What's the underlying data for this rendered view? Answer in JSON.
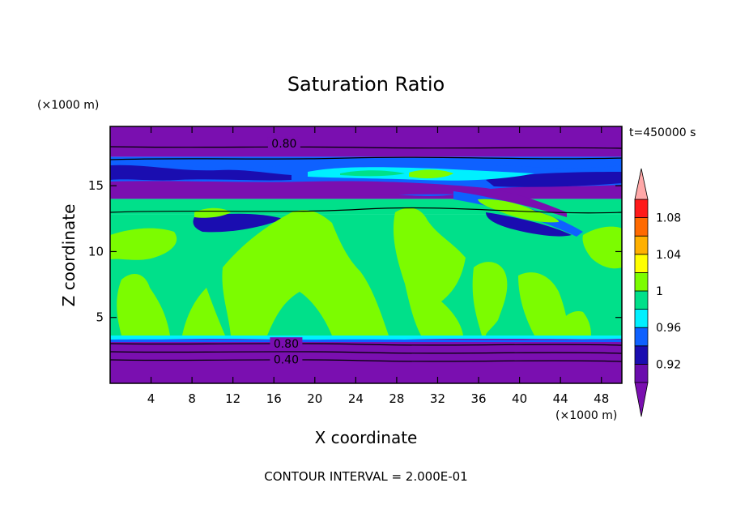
{
  "chart_data": {
    "type": "heatmap",
    "title": "Saturation Ratio",
    "xlabel": "X coordinate",
    "ylabel": "Z coordinate",
    "x_unit": "(×1000 m)",
    "y_unit": "(×1000 m)",
    "time_label": "t=450000 s",
    "footer": "CONTOUR INTERVAL = 2.000E-01",
    "xlim": [
      0,
      50
    ],
    "ylim": [
      0,
      19.5
    ],
    "x_ticks": [
      4,
      8,
      12,
      16,
      20,
      24,
      28,
      32,
      36,
      40,
      44,
      48
    ],
    "y_ticks": [
      5,
      10,
      15
    ],
    "contour_labels": [
      {
        "text": "0.80",
        "x": 17.0,
        "z": 18.2
      },
      {
        "text": "0.80",
        "x": 17.2,
        "z": 3.0
      },
      {
        "text": "0.40",
        "x": 17.2,
        "z": 1.8
      }
    ],
    "colorbar": {
      "levels": [
        0.9,
        0.92,
        0.94,
        0.96,
        0.98,
        1.0,
        1.02,
        1.04,
        1.06,
        1.08,
        1.1
      ],
      "colors": [
        "#6a0dad",
        "#1a0db0",
        "#0e61ff",
        "#00f0ff",
        "#00e08a",
        "#7cfc00",
        "#ffff00",
        "#ffb000",
        "#ff6a00",
        "#ff1a1a"
      ],
      "under_color": "#7a0fb0",
      "over_color": "#ffa8a8",
      "tick_labels": [
        "1.08",
        "1.04",
        "1",
        "0.96",
        "0.92"
      ],
      "tick_values": [
        1.08,
        1.04,
        1.0,
        0.96,
        0.92
      ]
    },
    "bands": [
      {
        "z0": 0.0,
        "z1": 3.4,
        "value": 0.4,
        "color": "#7a0fb0"
      },
      {
        "z0": 3.4,
        "z1": 3.6,
        "value": 0.96,
        "color": "#00f0ff"
      },
      {
        "z0": 3.6,
        "z1": 12.8,
        "value": 0.98,
        "color": "#00e08a"
      },
      {
        "z0": 12.8,
        "z1": 14.0,
        "value": 0.97,
        "color": "#00e08a"
      },
      {
        "z0": 14.0,
        "z1": 15.8,
        "value": 0.9,
        "color": "#7a0fb0"
      },
      {
        "z0": 15.8,
        "z1": 17.2,
        "value": 0.94,
        "color": "#0e61ff"
      },
      {
        "z0": 17.2,
        "z1": 19.5,
        "value": 0.8,
        "color": "#7a0fb0"
      }
    ]
  }
}
